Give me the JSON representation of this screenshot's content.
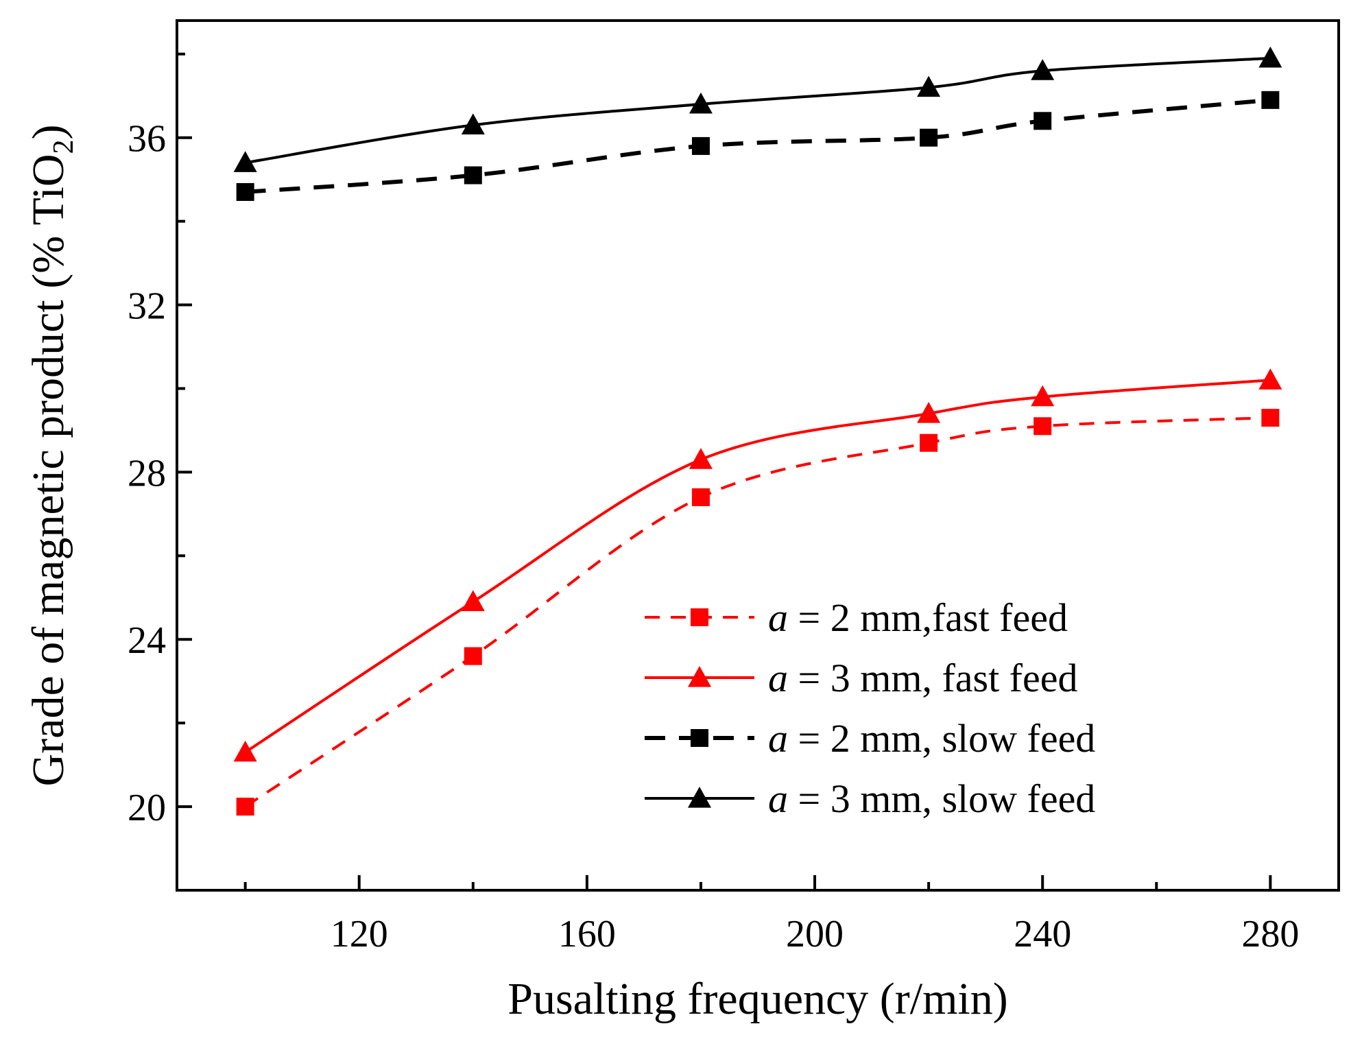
{
  "chart_data": {
    "type": "line",
    "xlabel": "Pusalting frequency (r/min)",
    "ylabel_main": "Grade of magnetic product (% TiO",
    "ylabel_sub": "2",
    "ylabel_close": ")",
    "xlim": [
      88,
      292
    ],
    "ylim": [
      18,
      38.8
    ],
    "xticks_major": [
      120,
      160,
      200,
      240,
      280
    ],
    "xticks_minor": [
      100,
      140,
      180,
      220,
      260
    ],
    "yticks_major": [
      20,
      24,
      28,
      32,
      36
    ],
    "yticks_minor": [
      22,
      26,
      30,
      34,
      38
    ],
    "x": [
      100,
      140,
      180,
      220,
      240,
      280
    ],
    "series": [
      {
        "name": "a = 2 mm,fast feed",
        "legend_var": "a",
        "legend_rest": " = 2 mm,fast feed",
        "color": "#ff0000",
        "line": "dash",
        "marker": "square",
        "values": [
          20.0,
          23.6,
          27.4,
          28.7,
          29.1,
          29.3
        ]
      },
      {
        "name": "a = 3 mm, fast feed",
        "legend_var": "a",
        "legend_rest": " = 3 mm, fast feed",
        "color": "#ff0000",
        "line": "solid",
        "marker": "triangle",
        "values": [
          21.3,
          24.9,
          28.3,
          29.4,
          29.8,
          30.2
        ]
      },
      {
        "name": "a = 2 mm, slow feed",
        "legend_var": "a",
        "legend_rest": " = 2 mm, slow feed",
        "color": "#000000",
        "line": "dash",
        "marker": "square",
        "values": [
          34.7,
          35.1,
          35.8,
          36.0,
          36.4,
          36.9
        ]
      },
      {
        "name": "a = 3 mm, slow feed",
        "legend_var": "a",
        "legend_rest": " = 3 mm, slow feed",
        "color": "#000000",
        "line": "solid",
        "marker": "triangle",
        "values": [
          35.4,
          36.3,
          36.8,
          37.2,
          37.6,
          37.9
        ]
      }
    ],
    "legend_position": "lower-right",
    "grid": false
  }
}
